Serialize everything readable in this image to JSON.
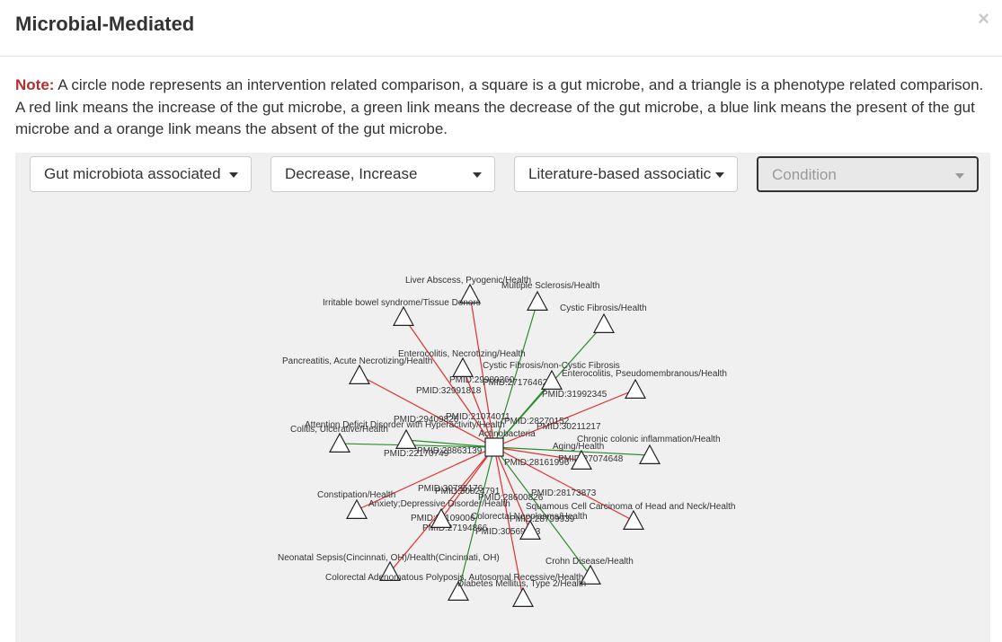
{
  "modal": {
    "title": "Microbial-Mediated",
    "close_symbol": "×"
  },
  "note": {
    "label": "Note:",
    "text": " A circle node represents an intervention related comparison, a square is a gut microbe, and a triangle is a phenotype related comparison. A red link means the increase of the gut microbe, a green link means the decrease of the gut microbe, a blue link means the present of the gut microbe and a orange link means the absent of the gut microbe."
  },
  "filters": {
    "association_type": "Gut microbiota associated",
    "direction": "Decrease, Increase",
    "evidence": "Literature-based associatic",
    "condition_placeholder": "Condition"
  },
  "colors": {
    "increase": "#e03030",
    "decrease": "#2e8b2e",
    "present": "#3050d0",
    "absent": "#f0a030",
    "note_label": "#b03030"
  },
  "graph": {
    "center": {
      "label": "Actinobacteria",
      "shape": "square"
    },
    "phenotypes": [
      {
        "label": "Liver Abscess, Pyogenic/Health",
        "link": "increase"
      },
      {
        "label": "Multiple Sclerosis/Health",
        "link": "decrease"
      },
      {
        "label": "Irritable bowel syndrome/Tissue Donors",
        "link": "increase"
      },
      {
        "label": "Cystic Fibrosis/Health",
        "link": "decrease"
      },
      {
        "label": "Enterocolitis, Necrotizing/Health",
        "link": "increase"
      },
      {
        "label": "Pancreatitis, Acute Necrotizing/Health",
        "link": "increase"
      },
      {
        "label": "Cystic Fibrosis/non-Cystic Fibrosis",
        "link": "decrease"
      },
      {
        "label": "Enterocolitis, Pseudomembranous/Health",
        "link": "increase"
      },
      {
        "label": "Attention Deficit Disorder with Hyperactivity/Health",
        "link": "decrease"
      },
      {
        "label": "Colitis, Ulcerative/Health",
        "link": "decrease"
      },
      {
        "label": "Aging/Health",
        "link": "increase"
      },
      {
        "label": "Chronic colonic inflammation/Health",
        "link": "decrease"
      },
      {
        "label": "Constipation/Health",
        "link": "increase"
      },
      {
        "label": "Anxiety;Depressive Disorder/Health",
        "link": "increase"
      },
      {
        "label": "Colorectal Neoplasms/Health",
        "link": "increase"
      },
      {
        "label": "Squamous Cell Carcinoma of Head and Neck/Health",
        "link": "increase"
      },
      {
        "label": "Neonatal Sepsis(Cincinnati, OH)/Health(Cincinnati, OH)",
        "link": "increase"
      },
      {
        "label": "Crohn Disease/Health",
        "link": "decrease"
      },
      {
        "label": "Colorectal Adenomatous Polyposis, Autosomal Recessive/Health",
        "link": "decrease"
      },
      {
        "label": "Diabetes Mellitus, Type 2/Health",
        "link": "increase"
      }
    ],
    "pmids": [
      "PMID:29989260",
      "PMID:27176462",
      "PMID:32991818",
      "PMID:31992345",
      "PMID:21074011",
      "PMID:28270152",
      "PMID:29409826",
      "PMID:30211217",
      "PMID:22170749",
      "PMID:28863139",
      "PMID:28161996",
      "PMID:27074648",
      "PMID:30785176",
      "PMID:30824791",
      "PMID:28600826",
      "PMID:28173873",
      "PMID:31109006",
      "PMID:28799939",
      "PMID:27194866",
      "PMID:30569043"
    ]
  }
}
